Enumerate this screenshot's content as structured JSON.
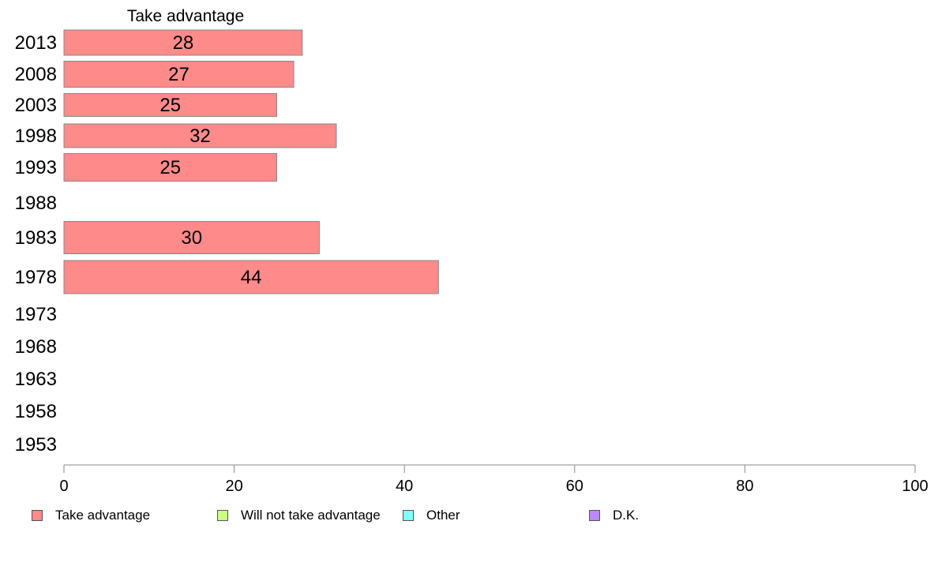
{
  "chart_data": {
    "type": "bar",
    "orientation": "horizontal",
    "title": "Take advantage",
    "categories": [
      "2013",
      "2008",
      "2003",
      "1998",
      "1993",
      "1988",
      "1983",
      "1978",
      "1973",
      "1968",
      "1963",
      "1958",
      "1953"
    ],
    "series": [
      {
        "name": "Take advantage",
        "color": "#ff8a8a",
        "values": [
          28,
          27,
          25,
          32,
          25,
          null,
          30,
          44,
          null,
          null,
          null,
          null,
          null
        ]
      }
    ],
    "data_labels": [
      "28",
      "27",
      "25",
      "32",
      "25",
      "",
      "30",
      "44",
      "",
      "",
      "",
      "",
      ""
    ],
    "xlim": [
      0,
      100
    ],
    "xticks": [
      "0",
      "20",
      "40",
      "60",
      "80",
      "100"
    ],
    "grid": false,
    "legend_position": "bottom"
  },
  "legend": [
    {
      "label": "Take advantage",
      "color": "#ff8a8a"
    },
    {
      "label": "Will not take advantage",
      "color": "#ccff80"
    },
    {
      "label": "Other",
      "color": "#80ffff"
    },
    {
      "label": "D.K.",
      "color": "#bb88ff"
    }
  ]
}
